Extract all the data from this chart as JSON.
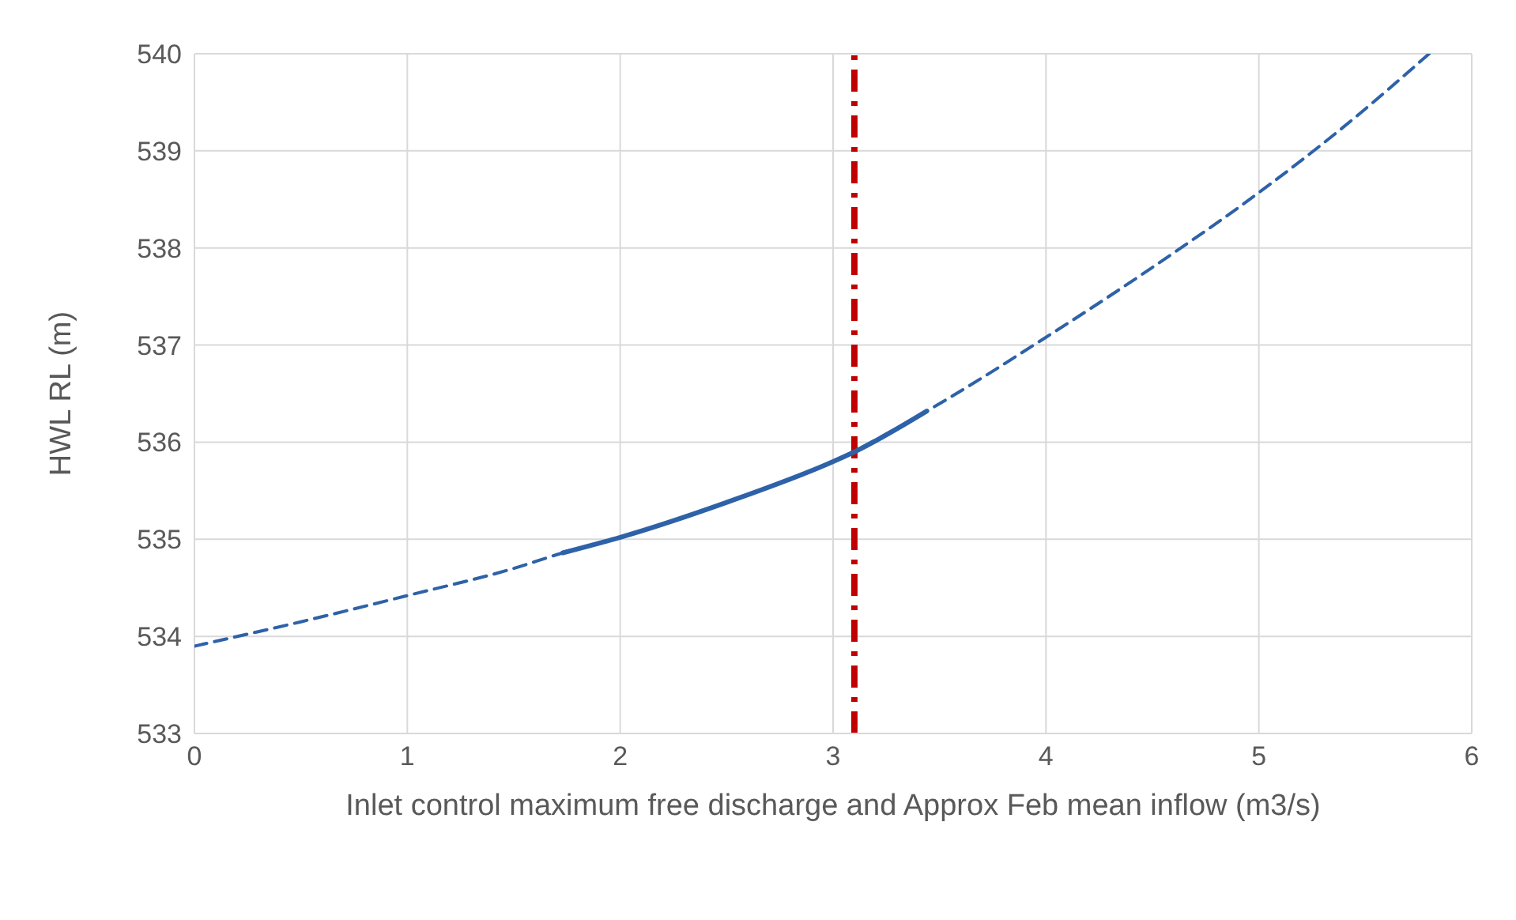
{
  "chart_data": {
    "type": "line",
    "xlabel": "Inlet control maximum free discharge and Approx Feb mean inflow (m3/s)",
    "ylabel": "HWL RL (m)",
    "series": [
      {
        "color": "#2e62a8",
        "line_style": "dashed",
        "x": [
          0,
          0.5,
          1,
          1.5,
          1.73,
          2,
          2.5,
          3,
          3.44,
          4,
          4.5,
          5,
          5.4,
          5.8
        ],
        "values": [
          533.9,
          534.15,
          534.42,
          534.7,
          534.86,
          535.02,
          535.38,
          535.8,
          536.32,
          537.08,
          537.8,
          538.57,
          539.25,
          540
        ]
      },
      {
        "color": "#2e62a8",
        "line_style": "solid",
        "x": [
          1.73,
          2,
          2.5,
          3,
          3.1,
          3.44
        ],
        "values": [
          534.86,
          535.02,
          535.38,
          535.8,
          535.9,
          536.32
        ]
      }
    ],
    "ref_lines": [
      {
        "axis": "x",
        "value": 3.1,
        "color": "#c00000",
        "line_style": "dashed"
      }
    ],
    "xlim": [
      0,
      6
    ],
    "xticks": [
      0,
      1,
      2,
      3,
      4,
      5,
      6
    ],
    "ylim": [
      533,
      540
    ],
    "yticks": [
      533,
      534,
      535,
      536,
      537,
      538,
      539,
      540
    ],
    "grid": true,
    "marker": "none"
  }
}
